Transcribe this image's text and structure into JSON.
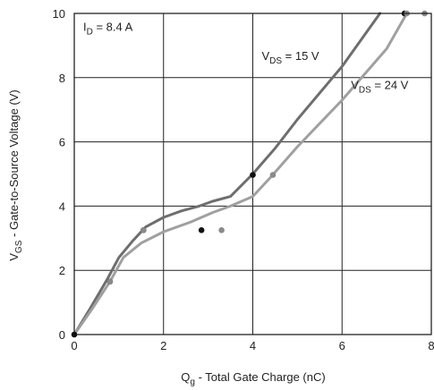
{
  "chart_data": {
    "type": "line",
    "xlabel": {
      "main": "Q",
      "sub": "g",
      "rest": " - Total Gate Charge (nC)"
    },
    "ylabel": {
      "main": "V",
      "sub": "GS",
      "rest": " - Gate-to-Source Voltage (V)"
    },
    "xlim": [
      0,
      8
    ],
    "ylim": [
      0,
      10
    ],
    "xticks": [
      "0",
      "2",
      "4",
      "6",
      "8"
    ],
    "yticks": [
      "0",
      "2",
      "4",
      "6",
      "8",
      "10"
    ],
    "grid": true,
    "annotations": [
      {
        "main": "I",
        "sub": "D",
        "rest": " = 8.4 A",
        "x": 0.2,
        "y": 9.45
      },
      {
        "main": "V",
        "sub": "DS",
        "rest": " = 15 V",
        "x": 4.2,
        "y": 8.55
      },
      {
        "main": "V",
        "sub": "DS",
        "rest": " = 24 V",
        "x": 6.2,
        "y": 7.65
      }
    ],
    "series": [
      {
        "color": "#6e6e6e",
        "x": [
          0,
          0.35,
          0.75,
          1.0,
          1.3,
          1.6,
          2.0,
          2.4,
          2.8,
          3.1,
          3.5,
          4.0,
          4.5,
          5.0,
          6.0,
          6.85
        ],
        "y": [
          0,
          0.8,
          1.75,
          2.4,
          2.9,
          3.35,
          3.65,
          3.85,
          4.0,
          4.15,
          4.3,
          5.0,
          5.8,
          6.7,
          8.35,
          10.0
        ],
        "markers": [
          {
            "x": 0,
            "y": 0
          },
          {
            "x": 0.8,
            "y": 1.65
          },
          {
            "x": 1.55,
            "y": 3.25
          },
          {
            "x": 2.85,
            "y": 3.25
          },
          {
            "x": 4.0,
            "y": 4.97
          },
          {
            "x": 7.4,
            "y": 10.0
          }
        ]
      },
      {
        "color": "#a0a0a0",
        "x": [
          0,
          0.4,
          0.8,
          1.1,
          1.5,
          2.0,
          2.6,
          3.1,
          3.5,
          4.0,
          4.4,
          5.0,
          6.0,
          7.0,
          7.45
        ],
        "y": [
          0,
          0.8,
          1.65,
          2.4,
          2.85,
          3.2,
          3.5,
          3.8,
          4.0,
          4.3,
          4.9,
          5.85,
          7.3,
          8.9,
          10.0
        ],
        "markers": [
          {
            "x": 0.8,
            "y": 1.65
          },
          {
            "x": 1.55,
            "y": 3.25
          },
          {
            "x": 3.3,
            "y": 3.25
          },
          {
            "x": 4.45,
            "y": 4.97
          },
          {
            "x": 7.45,
            "y": 10.0
          },
          {
            "x": 7.85,
            "y": 10.0
          }
        ]
      }
    ],
    "marker_colors": {
      "dark": "#111111",
      "light": "#8a8a8a"
    }
  }
}
